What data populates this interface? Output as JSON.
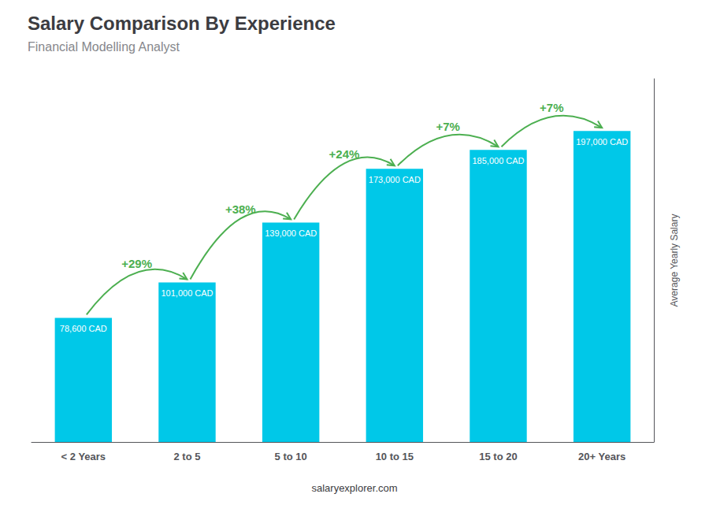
{
  "chart_data": {
    "type": "bar",
    "title": "Salary Comparison By Experience",
    "subtitle": "Financial Modelling Analyst",
    "categories": [
      "< 2 Years",
      "2 to 5",
      "5 to 10",
      "10 to 15",
      "15 to 20",
      "20+ Years"
    ],
    "values": [
      78600,
      101000,
      139000,
      173000,
      185000,
      197000
    ],
    "value_labels": [
      "78,600 CAD",
      "101,000 CAD",
      "139,000 CAD",
      "173,000 CAD",
      "185,000 CAD",
      "197,000 CAD"
    ],
    "data_labels": true,
    "color": "#00c8e8",
    "ylabel": "Average Yearly Salary",
    "annotations": [
      "+29%",
      "+38%",
      "+24%",
      "+7%",
      "+7%"
    ],
    "footer": "salaryexplorer.com",
    "ylim": [
      0,
      230000
    ],
    "grid": false,
    "tick_labels": "x"
  }
}
